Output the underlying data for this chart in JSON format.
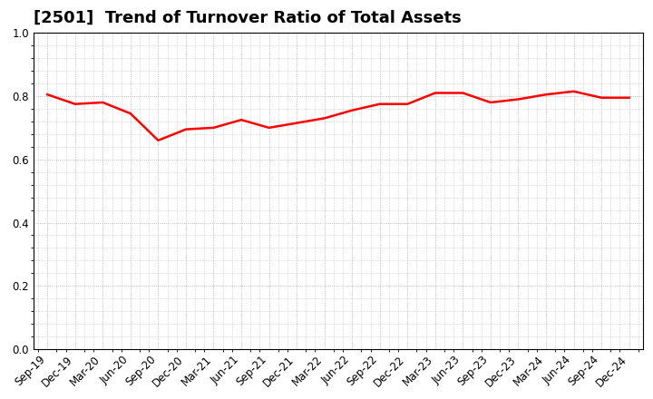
{
  "title": "[2501]  Trend of Turnover Ratio of Total Assets",
  "labels": [
    "Sep-19",
    "Dec-19",
    "Mar-20",
    "Jun-20",
    "Sep-20",
    "Dec-20",
    "Mar-21",
    "Jun-21",
    "Sep-21",
    "Dec-21",
    "Mar-22",
    "Jun-22",
    "Sep-22",
    "Dec-22",
    "Mar-23",
    "Jun-23",
    "Sep-23",
    "Dec-23",
    "Mar-24",
    "Jun-24",
    "Sep-24",
    "Dec-24"
  ],
  "values": [
    0.805,
    0.775,
    0.78,
    0.745,
    0.66,
    0.695,
    0.7,
    0.725,
    0.7,
    0.715,
    0.73,
    0.755,
    0.775,
    0.775,
    0.81,
    0.81,
    0.78,
    0.79,
    0.805,
    0.815,
    0.795,
    0.795
  ],
  "line_color": "#ff0000",
  "line_width": 1.8,
  "ylim": [
    0.0,
    1.0
  ],
  "yticks": [
    0.0,
    0.2,
    0.4,
    0.6,
    0.8,
    1.0
  ],
  "background_color": "#ffffff",
  "grid_color": "#aaaaaa",
  "title_fontsize": 13,
  "tick_fontsize": 8.5,
  "label_rotation": 45
}
